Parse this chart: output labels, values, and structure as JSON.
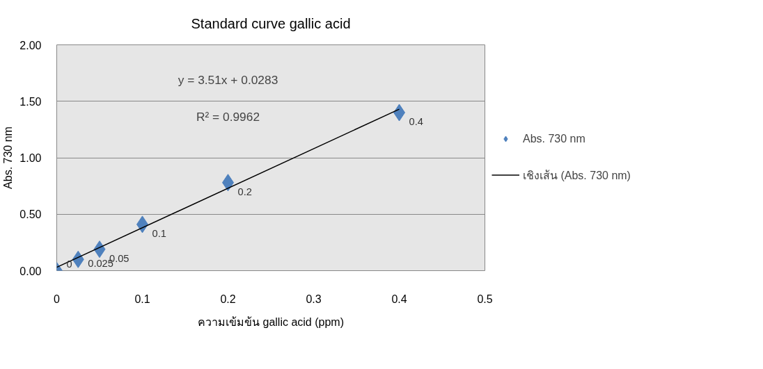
{
  "chart_data": {
    "type": "scatter",
    "title": "Standard curve gallic acid",
    "xlabel": "ความเข้มข้น gallic acid (ppm)",
    "ylabel": "Abs. 730 nm",
    "x": [
      0,
      0.025,
      0.05,
      0.1,
      0.2,
      0.4
    ],
    "series": [
      {
        "name": "Abs. 730 nm",
        "color": "#4f81bd",
        "values": [
          0,
          0.1,
          0.19,
          0.41,
          0.78,
          1.4
        ],
        "marker": "diamond"
      },
      {
        "name": "เชิงเส้น (Abs. 730 nm)",
        "type": "line",
        "color": "#000000",
        "x": [
          0,
          0.4
        ],
        "values": [
          0.03,
          1.43
        ]
      }
    ],
    "annotations": [
      "y = 3.51x + 0.0283",
      "R² = 0.9962",
      {
        "text": "0",
        "x": 0,
        "y": 0
      },
      {
        "text": "0.025",
        "x": 0.025,
        "y": 0.1
      },
      {
        "text": "0.05",
        "x": 0.05,
        "y": 0.19
      },
      {
        "text": "0.1",
        "x": 0.1,
        "y": 0.41
      },
      {
        "text": "0.2",
        "x": 0.2,
        "y": 0.78
      },
      {
        "text": "0.4",
        "x": 0.4,
        "y": 1.4
      }
    ],
    "xlim": [
      0,
      0.5
    ],
    "xticks": [
      0,
      0.1,
      0.2,
      0.3,
      0.4,
      0.5
    ],
    "ylim": [
      0,
      2
    ],
    "yticks": [
      {
        "value": 0,
        "label": "0.00"
      },
      {
        "value": 0.5,
        "label": "0.50"
      },
      {
        "value": 1,
        "label": "1.00"
      },
      {
        "value": 1.5,
        "label": "1.50"
      },
      {
        "value": 2,
        "label": "2.00"
      }
    ],
    "grid": "y",
    "legend": "right"
  }
}
